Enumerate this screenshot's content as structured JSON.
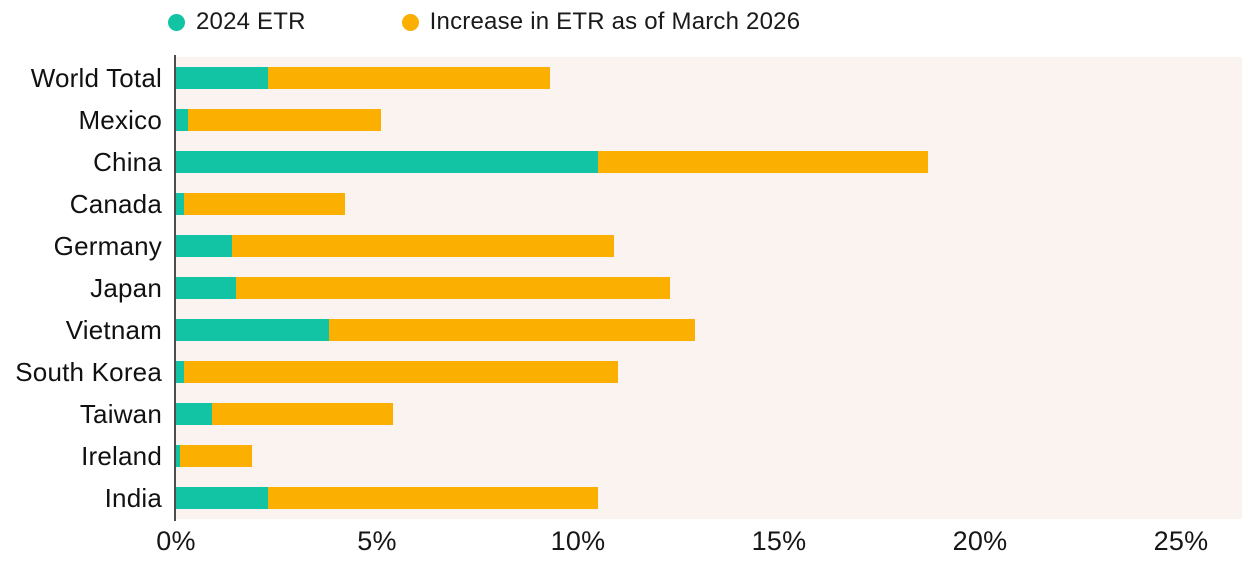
{
  "legend": {
    "items": [
      {
        "label": "2024 ETR",
        "color": "#12C3A4"
      },
      {
        "label": "Increase in ETR as of March 2026",
        "color": "#FBAF00"
      }
    ]
  },
  "chart_data": {
    "type": "bar",
    "orientation": "horizontal",
    "stacked": true,
    "title": "",
    "xlabel": "",
    "ylabel": "",
    "categories": [
      "World Total",
      "Mexico",
      "China",
      "Canada",
      "Germany",
      "Japan",
      "Vietnam",
      "South Korea",
      "Taiwan",
      "Ireland",
      "India"
    ],
    "series": [
      {
        "name": "2024 ETR",
        "color": "#12C3A4",
        "values": [
          2.3,
          0.3,
          10.5,
          0.2,
          1.4,
          1.5,
          3.8,
          0.2,
          0.9,
          0.1,
          2.3
        ]
      },
      {
        "name": "Increase in ETR as of March 2026",
        "color": "#FBAF00",
        "values": [
          7.0,
          4.8,
          8.2,
          4.0,
          9.5,
          10.8,
          9.1,
          10.8,
          4.5,
          1.8,
          8.2
        ]
      }
    ],
    "totals": [
      9.3,
      5.1,
      18.7,
      4.2,
      10.9,
      12.3,
      12.9,
      11.0,
      5.4,
      1.9,
      10.5
    ],
    "x_ticks": [
      "0%",
      "5%",
      "10%",
      "15%",
      "20%",
      "25%"
    ],
    "x_tick_values": [
      0,
      5,
      10,
      15,
      20,
      25
    ],
    "xlim": [
      0,
      26.5
    ],
    "grid": false,
    "legend_position": "top",
    "plot_background": "#FAF3F0",
    "axis_color": "#4D4D4D"
  }
}
